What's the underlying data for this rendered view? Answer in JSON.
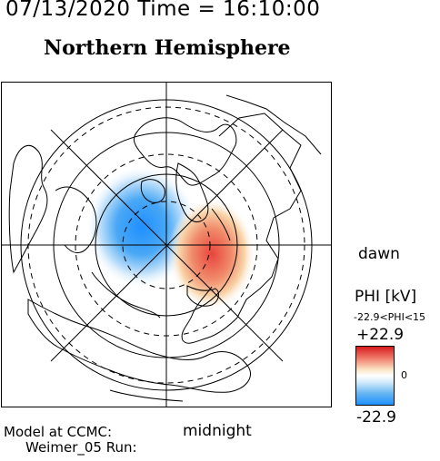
{
  "header": {
    "date_time": "07/13/2020 Time = 16:10:00",
    "hemisphere": "Northern Hemisphere"
  },
  "map": {
    "dawn_label": "dawn",
    "midnight_label": "midnight",
    "colors": {
      "positive": "#e8453c",
      "negative": "#1e90ff",
      "land_outline": "#000000"
    }
  },
  "colorbar": {
    "title": "PHI [kV]",
    "range_text": "-22.9<PHI<15",
    "max_label": "+22.9",
    "zero_label": "0",
    "min_label": "-22.9"
  },
  "footer": {
    "model_line": "Model at CCMC:",
    "run_line": "Weimer_05 Run:"
  }
}
